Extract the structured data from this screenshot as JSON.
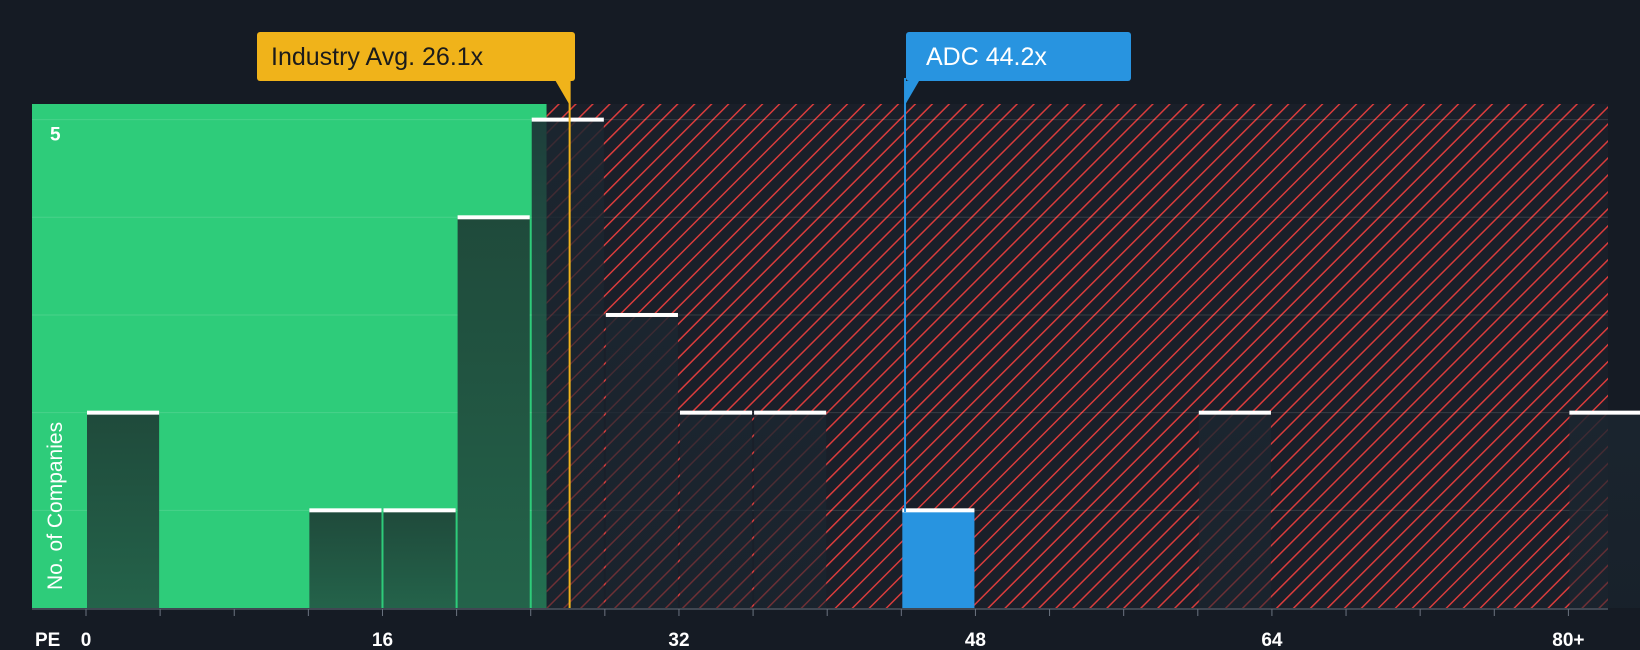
{
  "chart_data": {
    "type": "bar",
    "xlabel": "PE",
    "ylabel": "No. of Companies",
    "x_ticks": [
      "0",
      "16",
      "32",
      "48",
      "64",
      "80+"
    ],
    "x_tick_values": [
      0,
      16,
      32,
      48,
      64,
      80
    ],
    "y_ticks": [
      "5"
    ],
    "y_tick_values": [
      5
    ],
    "xlim": [
      0,
      81
    ],
    "ylim": [
      0,
      5.16
    ],
    "bins": [
      {
        "x0": 0,
        "x1": 4,
        "value": 2
      },
      {
        "x0": 12,
        "x1": 16,
        "value": 1
      },
      {
        "x0": 16,
        "x1": 20,
        "value": 1
      },
      {
        "x0": 20,
        "x1": 24,
        "value": 4
      },
      {
        "x0": 24,
        "x1": 28,
        "value": 5
      },
      {
        "x0": 28,
        "x1": 32,
        "value": 3
      },
      {
        "x0": 32,
        "x1": 36,
        "value": 2
      },
      {
        "x0": 36,
        "x1": 40,
        "value": 2
      },
      {
        "x0": 44,
        "x1": 48,
        "value": 1,
        "highlight": true
      },
      {
        "x0": 60,
        "x1": 64,
        "value": 2
      },
      {
        "x0": 80,
        "x1": 84,
        "value": 2
      }
    ],
    "industry_avg": {
      "label": "Industry Avg. 26.1x",
      "value": 26.1
    },
    "company": {
      "label": "ADC 44.2x",
      "value": 44.2
    },
    "colors": {
      "background": "#151b24",
      "fair_zone": "#2ecc7a",
      "over_zone_hatch": "#d93c3c",
      "bar": "#1e4a3c",
      "highlight_bar": "#2894e0",
      "industry_callout": "#f0b31a",
      "company_callout": "#2894e0",
      "bar_cap": "#ffffff"
    }
  }
}
